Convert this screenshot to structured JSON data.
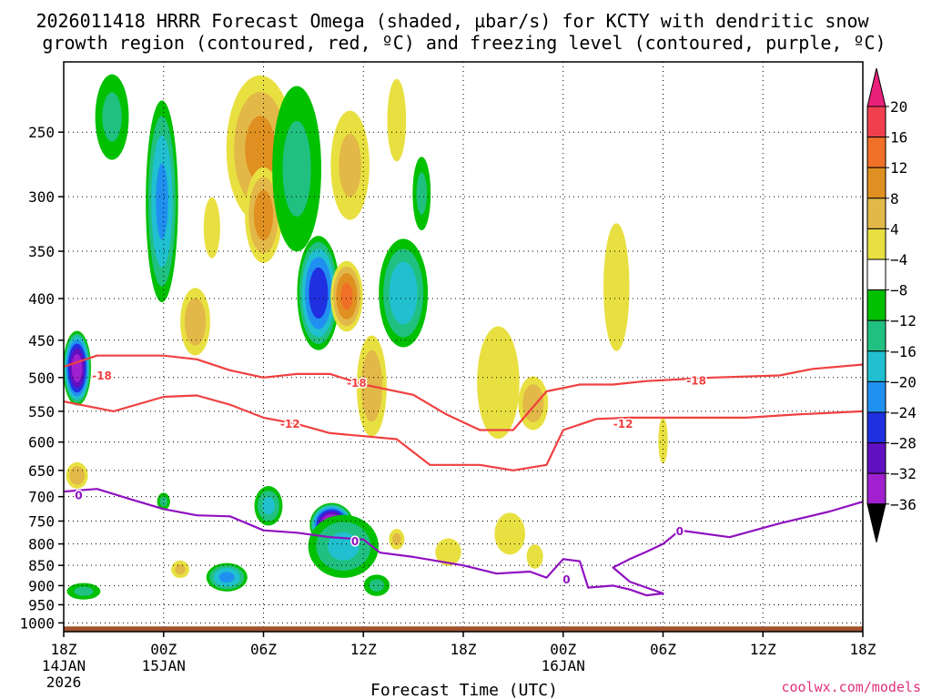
{
  "chart_data": {
    "type": "heatmap",
    "title_lines": [
      "2026011418 HRRR Forecast Omega (shaded, µbar/s) for KCTY with dendritic snow",
      "growth region (contoured, red, ºC) and freezing level (contoured, purple, ºC)"
    ],
    "xlabel": "Forecast Time (UTC)",
    "credit": "coolwx.com/models",
    "x_range_hours": [
      0,
      48
    ],
    "x_ticks": [
      {
        "hour": 0,
        "label": "18Z",
        "sub": [
          "14JAN",
          "2026"
        ]
      },
      {
        "hour": 6,
        "label": "00Z",
        "sub": [
          "15JAN"
        ]
      },
      {
        "hour": 12,
        "label": "06Z",
        "sub": []
      },
      {
        "hour": 18,
        "label": "12Z",
        "sub": []
      },
      {
        "hour": 24,
        "label": "18Z",
        "sub": []
      },
      {
        "hour": 30,
        "label": "00Z",
        "sub": [
          "16JAN"
        ]
      },
      {
        "hour": 36,
        "label": "06Z",
        "sub": []
      },
      {
        "hour": 42,
        "label": "12Z",
        "sub": []
      },
      {
        "hour": 48,
        "label": "18Z",
        "sub": []
      }
    ],
    "y_range_hpa": [
      205,
      1025
    ],
    "y_ticks": [
      250,
      300,
      350,
      400,
      450,
      500,
      550,
      600,
      650,
      700,
      750,
      800,
      850,
      900,
      950,
      1000
    ],
    "colorbar": {
      "levels": [
        20,
        16,
        12,
        8,
        4,
        -4,
        -8,
        -12,
        -16,
        -20,
        -24,
        -28,
        -32,
        -36
      ],
      "colors": [
        "#f04050",
        "#f07028",
        "#e09020",
        "#e2b848",
        "#e8e040",
        "#ffffff",
        "#00c000",
        "#20c080",
        "#20c0d0",
        "#2090f0",
        "#2030e0",
        "#6010c0",
        "#a020d0",
        "#a8a8a8"
      ],
      "top_color": "#e8207a",
      "bottom_color": "#000000"
    },
    "omega_blobs": [
      {
        "hour": 0.8,
        "p": 490,
        "hw": 0.9,
        "hp": 110,
        "v": -30
      },
      {
        "hour": 0.8,
        "p": 660,
        "hw": 0.8,
        "hp": 60,
        "v": 10
      },
      {
        "hour": 1.2,
        "p": 915,
        "hw": 1.3,
        "hp": 55,
        "v": -8
      },
      {
        "hour": 2.9,
        "p": 220,
        "hw": 1.3,
        "hp": 120,
        "v": -8
      },
      {
        "hour": 5.9,
        "p": 320,
        "hw": 1.1,
        "hp": 200,
        "v": -16
      },
      {
        "hour": 7.9,
        "p": 430,
        "hw": 1.1,
        "hp": 100,
        "v": 10
      },
      {
        "hour": 8.9,
        "p": 330,
        "hw": 0.7,
        "hp": 80,
        "v": 6
      },
      {
        "hour": 11.8,
        "p": 250,
        "hw": 2.4,
        "hp": 170,
        "v": 12
      },
      {
        "hour": 12.0,
        "p": 320,
        "hw": 1.3,
        "hp": 100,
        "v": 13
      },
      {
        "hour": 9.8,
        "p": 880,
        "hw": 1.4,
        "hp": 80,
        "v": -16
      },
      {
        "hour": 6.0,
        "p": 710,
        "hw": 0.5,
        "hp": 45,
        "v": -8
      },
      {
        "hour": 7.0,
        "p": 860,
        "hw": 0.7,
        "hp": 55,
        "v": 8
      },
      {
        "hour": 12.3,
        "p": 720,
        "hw": 1.0,
        "hp": 95,
        "v": -12
      },
      {
        "hour": 14.0,
        "p": 290,
        "hw": 1.9,
        "hp": 170,
        "v": -8
      },
      {
        "hour": 15.3,
        "p": 400,
        "hw": 1.4,
        "hp": 140,
        "v": -22
      },
      {
        "hour": 16.1,
        "p": 760,
        "hw": 1.4,
        "hp": 100,
        "v": -34
      },
      {
        "hour": 16.8,
        "p": 810,
        "hw": 2.5,
        "hp": 170,
        "v": -12
      },
      {
        "hour": 17.0,
        "p": 400,
        "hw": 1.1,
        "hp": 90,
        "v": 16
      },
      {
        "hour": 17.2,
        "p": 280,
        "hw": 1.5,
        "hp": 110,
        "v": 8
      },
      {
        "hour": 18.5,
        "p": 520,
        "hw": 1.1,
        "hp": 180,
        "v": 10
      },
      {
        "hour": 18.8,
        "p": 900,
        "hw": 1.0,
        "hp": 70,
        "v": -8
      },
      {
        "hour": 20.0,
        "p": 240,
        "hw": 0.8,
        "hp": 90,
        "v": 6
      },
      {
        "hour": 20.4,
        "p": 400,
        "hw": 1.7,
        "hp": 140,
        "v": -14
      },
      {
        "hour": 20.0,
        "p": 790,
        "hw": 0.6,
        "hp": 60,
        "v": 8
      },
      {
        "hour": 21.5,
        "p": 300,
        "hw": 0.7,
        "hp": 80,
        "v": -8
      },
      {
        "hour": 23.1,
        "p": 820,
        "hw": 1.1,
        "hp": 90,
        "v": 6
      },
      {
        "hour": 26.1,
        "p": 520,
        "hw": 1.8,
        "hp": 230,
        "v": 6
      },
      {
        "hour": 26.8,
        "p": 780,
        "hw": 1.3,
        "hp": 130,
        "v": 6
      },
      {
        "hour": 28.2,
        "p": 540,
        "hw": 1.1,
        "hp": 100,
        "v": 10
      },
      {
        "hour": 28.3,
        "p": 830,
        "hw": 0.7,
        "hp": 80,
        "v": 6
      },
      {
        "hour": 33.2,
        "p": 400,
        "hw": 1.1,
        "hp": 200,
        "v": 6
      },
      {
        "hour": 36.0,
        "p": 600,
        "hw": 0.4,
        "hp": 110,
        "v": 6
      }
    ],
    "dgz_contours": [
      {
        "label": "-18",
        "color": "#f04040",
        "points": [
          [
            0,
            485
          ],
          [
            2,
            470
          ],
          [
            6,
            470
          ],
          [
            8,
            475
          ],
          [
            10,
            490
          ],
          [
            12,
            500
          ],
          [
            14,
            495
          ],
          [
            16,
            495
          ],
          [
            18,
            510
          ],
          [
            21,
            525
          ],
          [
            23,
            555
          ],
          [
            25,
            580
          ],
          [
            27,
            580
          ],
          [
            29,
            520
          ],
          [
            31,
            510
          ],
          [
            33,
            510
          ],
          [
            35,
            505
          ],
          [
            39,
            500
          ],
          [
            43,
            497
          ],
          [
            45,
            488
          ],
          [
            48,
            482
          ]
        ],
        "labels_at": [
          [
            2.3,
            498
          ],
          [
            17.6,
            508
          ],
          [
            38.0,
            505
          ]
        ]
      },
      {
        "label": "-12",
        "color": "#f04040",
        "points": [
          [
            0,
            535
          ],
          [
            3,
            550
          ],
          [
            6,
            528
          ],
          [
            8,
            526
          ],
          [
            10,
            540
          ],
          [
            12,
            560
          ],
          [
            14,
            570
          ],
          [
            16,
            585
          ],
          [
            18,
            590
          ],
          [
            20,
            595
          ],
          [
            22,
            640
          ],
          [
            25,
            640
          ],
          [
            27,
            650
          ],
          [
            29,
            640
          ],
          [
            30,
            580
          ],
          [
            32,
            562
          ],
          [
            34,
            560
          ],
          [
            37,
            560
          ],
          [
            41,
            560
          ],
          [
            44,
            555
          ],
          [
            48,
            550
          ]
        ],
        "labels_at": [
          [
            13.6,
            570
          ],
          [
            33.6,
            570
          ]
        ]
      }
    ],
    "freezing_contours": [
      {
        "label": "0",
        "color": "#9010c0",
        "points": [
          [
            0,
            690
          ],
          [
            2,
            685
          ],
          [
            4,
            705
          ],
          [
            6,
            725
          ],
          [
            8,
            738
          ],
          [
            10,
            740
          ],
          [
            12,
            770
          ],
          [
            14,
            775
          ],
          [
            16,
            785
          ],
          [
            18,
            790
          ],
          [
            19,
            820
          ],
          [
            21,
            830
          ],
          [
            24,
            850
          ],
          [
            26,
            870
          ],
          [
            28,
            865
          ],
          [
            29,
            880
          ],
          [
            30,
            835
          ],
          [
            31,
            840
          ],
          [
            31.5,
            905
          ],
          [
            33,
            900
          ],
          [
            34,
            910
          ],
          [
            35,
            925
          ],
          [
            36,
            920
          ],
          [
            34,
            890
          ],
          [
            33,
            855
          ],
          [
            34,
            835
          ],
          [
            35,
            818
          ],
          [
            36,
            800
          ],
          [
            37,
            770
          ],
          [
            40,
            785
          ],
          [
            43,
            755
          ],
          [
            46,
            730
          ],
          [
            48,
            710
          ]
        ],
        "labels_at": [
          [
            0.9,
            698
          ],
          [
            17.5,
            795
          ],
          [
            30.2,
            885
          ],
          [
            37.0,
            773
          ]
        ]
      }
    ],
    "terrain_top_hpa": 1010
  }
}
